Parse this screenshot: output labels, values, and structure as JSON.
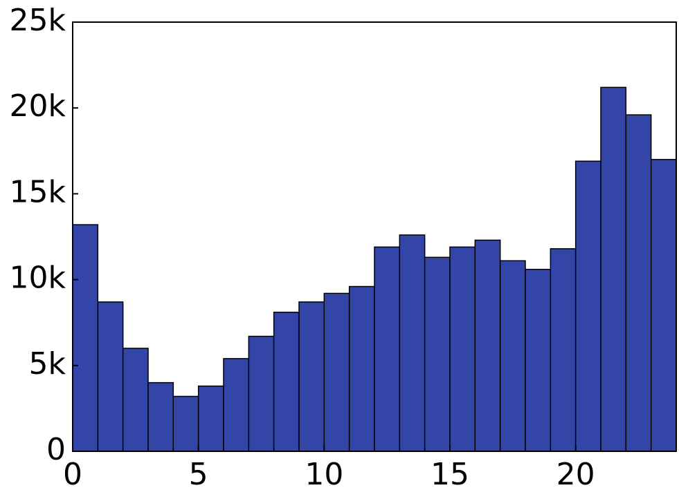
{
  "chart_data": {
    "type": "histogram",
    "bins": [
      0,
      1,
      2,
      3,
      4,
      5,
      6,
      7,
      8,
      9,
      10,
      11,
      12,
      13,
      14,
      15,
      16,
      17,
      18,
      19,
      20,
      21,
      22,
      23,
      24
    ],
    "values": [
      13200,
      8700,
      6000,
      4000,
      3200,
      3800,
      5400,
      6700,
      8100,
      8700,
      9200,
      9600,
      11900,
      12600,
      11300,
      11900,
      12300,
      11100,
      10600,
      11800,
      16900,
      21200,
      19600,
      17000
    ],
    "color": "#3346a8",
    "xlim": [
      0,
      24
    ],
    "xticks": [
      0,
      5,
      10,
      15,
      20
    ],
    "ylim": [
      0,
      25000
    ],
    "yticks": [
      0,
      {
        "value": 5000,
        "label": "5k"
      },
      {
        "value": 10000,
        "label": "10k"
      },
      {
        "value": 15000,
        "label": "15k"
      },
      {
        "value": 20000,
        "label": "20k"
      },
      {
        "value": 25000,
        "label": "25k"
      }
    ],
    "grid": false
  }
}
